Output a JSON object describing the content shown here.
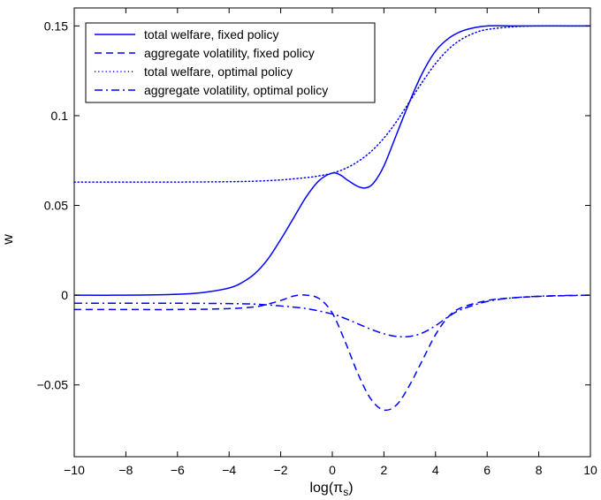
{
  "chart_data": {
    "type": "line",
    "xlabel": "log(π",
    "xlabel_sub": "s",
    "xlabel_close": ")",
    "ylabel": "w",
    "xlim": [
      -10,
      10
    ],
    "ylim": [
      -0.09,
      0.16
    ],
    "xticks": [
      -10,
      -8,
      -6,
      -4,
      -2,
      0,
      2,
      4,
      6,
      8,
      10
    ],
    "yticks": [
      -0.05,
      0,
      0.05,
      0.1,
      0.15
    ],
    "ytick_labels": [
      "−0.05",
      "0",
      "0.05",
      "0.1",
      "0.15"
    ],
    "xtick_labels": [
      "−10",
      "−8",
      "−6",
      "−4",
      "−2",
      "0",
      "2",
      "4",
      "6",
      "8",
      "10"
    ],
    "color": "#0000ff",
    "legend_position": "top-left",
    "series": [
      {
        "name": "total welfare, fixed policy",
        "style": "solid",
        "x": [
          -10,
          -8,
          -6,
          -5,
          -4,
          -3.5,
          -3,
          -2.5,
          -2,
          -1.5,
          -1,
          -0.5,
          0,
          0.3,
          0.6,
          1,
          1.3,
          1.6,
          2,
          2.5,
          3,
          3.5,
          4,
          4.5,
          5,
          5.5,
          6,
          7,
          8,
          9,
          10
        ],
        "y": [
          0,
          0,
          0.0005,
          0.0015,
          0.004,
          0.007,
          0.012,
          0.02,
          0.031,
          0.043,
          0.055,
          0.064,
          0.068,
          0.067,
          0.064,
          0.0605,
          0.0598,
          0.0625,
          0.072,
          0.09,
          0.108,
          0.124,
          0.136,
          0.143,
          0.147,
          0.149,
          0.15,
          0.15,
          0.15,
          0.15,
          0.15
        ]
      },
      {
        "name": "aggregate volatility, fixed policy",
        "style": "dashed",
        "x": [
          -10,
          -8,
          -6,
          -4,
          -3,
          -2.5,
          -2,
          -1.5,
          -1,
          -0.5,
          0,
          0.5,
          1,
          1.5,
          2,
          2.5,
          3,
          3.5,
          4,
          4.5,
          5,
          6,
          7,
          8,
          9,
          10
        ],
        "y": [
          -0.008,
          -0.008,
          -0.008,
          -0.0075,
          -0.0065,
          -0.005,
          -0.003,
          -0.0005,
          0,
          -0.002,
          -0.01,
          -0.026,
          -0.044,
          -0.058,
          -0.064,
          -0.061,
          -0.05,
          -0.036,
          -0.022,
          -0.012,
          -0.007,
          -0.003,
          -0.0015,
          -0.0007,
          -0.0003,
          0
        ]
      },
      {
        "name": "total welfare, optimal policy",
        "style": "dotted",
        "x": [
          -10,
          -8,
          -6,
          -4,
          -3,
          -2,
          -1,
          -0.5,
          0,
          0.5,
          1,
          1.5,
          2,
          2.5,
          3,
          3.5,
          4,
          4.5,
          5,
          5.5,
          6,
          7,
          8,
          9,
          10
        ],
        "y": [
          0.063,
          0.063,
          0.063,
          0.0632,
          0.0635,
          0.0642,
          0.0655,
          0.0665,
          0.068,
          0.0705,
          0.0745,
          0.08,
          0.0875,
          0.097,
          0.108,
          0.119,
          0.129,
          0.137,
          0.1425,
          0.146,
          0.148,
          0.1495,
          0.15,
          0.15,
          0.15
        ]
      },
      {
        "name": "aggregate volatility, optimal policy",
        "style": "dashdot",
        "x": [
          -10,
          -8,
          -6,
          -4,
          -3,
          -2,
          -1,
          0,
          0.5,
          1,
          1.5,
          2,
          2.5,
          3,
          3.5,
          4,
          4.5,
          5,
          6,
          7,
          8,
          9,
          10
        ],
        "y": [
          -0.0045,
          -0.0045,
          -0.0045,
          -0.0047,
          -0.005,
          -0.006,
          -0.0075,
          -0.0105,
          -0.013,
          -0.016,
          -0.019,
          -0.0215,
          -0.023,
          -0.023,
          -0.021,
          -0.017,
          -0.012,
          -0.008,
          -0.0035,
          -0.0015,
          -0.0006,
          -0.0002,
          0
        ]
      }
    ]
  }
}
